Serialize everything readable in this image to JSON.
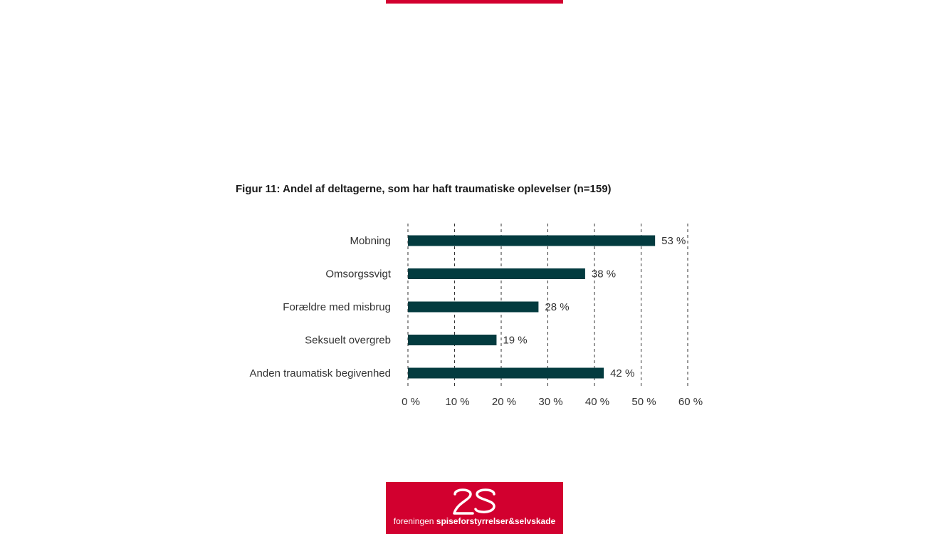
{
  "colors": {
    "brand": "#d2002f",
    "bar": "#033b3f",
    "text": "#333333",
    "grid": "#333333"
  },
  "figure": {
    "title": "Figur 11: Andel af deltagerne, som har haft traumatiske oplevelser (n=159)"
  },
  "chart_data": {
    "type": "bar",
    "orientation": "horizontal",
    "categories": [
      "Mobning",
      "Omsorgssvigt",
      "Forældre med misbrug",
      "Seksuelt overgreb",
      "Anden traumatisk begivenhed"
    ],
    "values": [
      53,
      38,
      28,
      19,
      42
    ],
    "value_labels": [
      "53 %",
      "38 %",
      "28 %",
      "19 %",
      "42 %"
    ],
    "xlim": [
      0,
      60
    ],
    "xticks": [
      0,
      10,
      20,
      30,
      40,
      50,
      60
    ],
    "xtick_labels": [
      "0 %",
      "10 %",
      "20 %",
      "30 %",
      "40 %",
      "50 %",
      "60 %"
    ],
    "grid": "vertical dashed"
  },
  "footer": {
    "logo_icon": "2s-logo-icon",
    "text_regular": "foreningen ",
    "text_bold": "spiseforstyrrelser&selvskade"
  }
}
